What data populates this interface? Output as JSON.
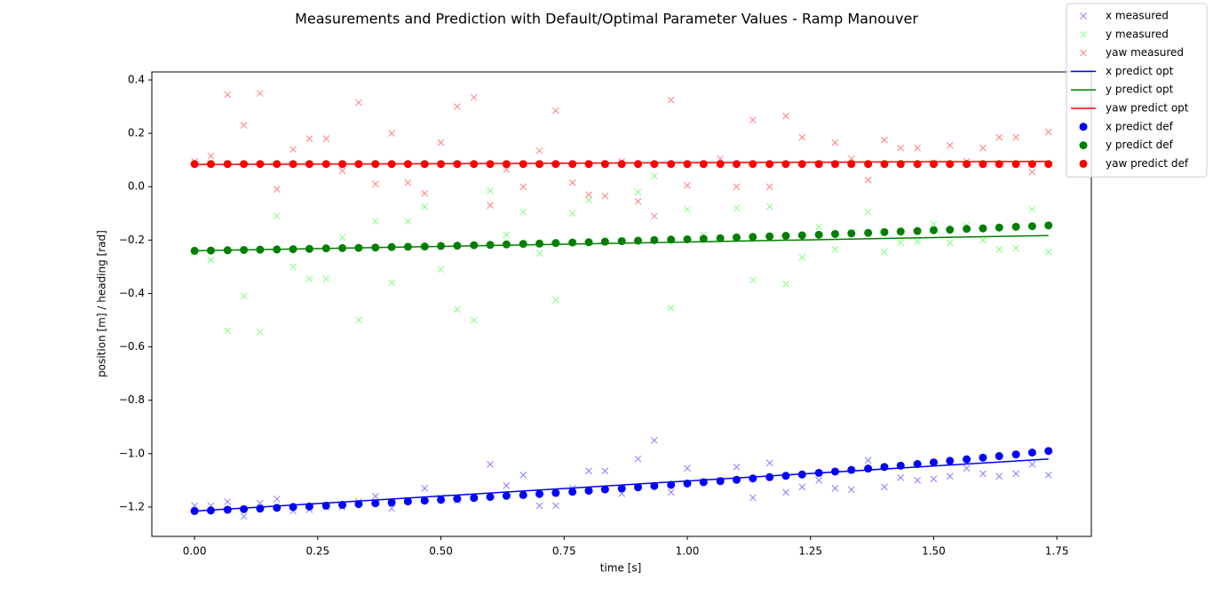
{
  "chart_data": {
    "type": "scatter-line",
    "title": "Measurements and Prediction with Default/Optimal Parameter Values - Ramp Manouver",
    "xlabel": "time [s]",
    "ylabel": "position [m] / heading [rad]",
    "xlim": [
      -0.0867,
      1.82
    ],
    "ylim": [
      -1.31,
      0.43
    ],
    "xticks": [
      {
        "value": 0,
        "label": "0.00"
      },
      {
        "value": 0.25,
        "label": "0.25"
      },
      {
        "value": 0.5,
        "label": "0.50"
      },
      {
        "value": 0.75,
        "label": "0.75"
      },
      {
        "value": 1.0,
        "label": "1.00"
      },
      {
        "value": 1.25,
        "label": "1.25"
      },
      {
        "value": 1.5,
        "label": "1.50"
      },
      {
        "value": 1.75,
        "label": "1.75"
      }
    ],
    "yticks": [
      {
        "value": -1.2,
        "label": "−1.2"
      },
      {
        "value": -1.0,
        "label": "−1.0"
      },
      {
        "value": -0.8,
        "label": "−0.8"
      },
      {
        "value": -0.6,
        "label": "−0.6"
      },
      {
        "value": -0.4,
        "label": "−0.4"
      },
      {
        "value": -0.2,
        "label": "−0.2"
      },
      {
        "value": 0,
        "label": "0.0"
      },
      0.2,
      0.4
    ],
    "legend": "upper right",
    "x": [
      0,
      0.033,
      0.067,
      0.1,
      0.133,
      0.167,
      0.2,
      0.233,
      0.267,
      0.3,
      0.333,
      0.367,
      0.4,
      0.433,
      0.467,
      0.5,
      0.533,
      0.567,
      0.6,
      0.633,
      0.667,
      0.7,
      0.733,
      0.767,
      0.8,
      0.833,
      0.867,
      0.9,
      0.933,
      0.967,
      1.0,
      1.033,
      1.067,
      1.1,
      1.133,
      1.167,
      1.2,
      1.233,
      1.267,
      1.3,
      1.333,
      1.367,
      1.4,
      1.433,
      1.467,
      1.5,
      1.533,
      1.567,
      1.6,
      1.633,
      1.667,
      1.7,
      1.733
    ],
    "series": [
      {
        "name": "x measured",
        "color": "#0000ff",
        "alpha": 0.5,
        "style": "x",
        "values": [
          -1.195,
          -1.195,
          -1.18,
          -1.235,
          -1.185,
          -1.17,
          -1.215,
          -1.21,
          -1.2,
          -1.2,
          -1.18,
          -1.16,
          -1.205,
          -1.175,
          -1.13,
          -1.165,
          -1.175,
          -1.165,
          -1.04,
          -1.12,
          -1.08,
          -1.195,
          -1.195,
          -1.13,
          -1.065,
          -1.065,
          -1.15,
          -1.02,
          -0.95,
          -1.145,
          -1.055,
          -1.105,
          -1.1,
          -1.05,
          -1.165,
          -1.035,
          -1.145,
          -1.125,
          -1.1,
          -1.13,
          -1.135,
          -1.025,
          -1.125,
          -1.09,
          -1.1,
          -1.095,
          -1.085,
          -1.055,
          -1.075,
          -1.085,
          -1.075,
          -1.04,
          -1.08
        ]
      },
      {
        "name": "y measured",
        "color": "#00ff00",
        "alpha": 0.5,
        "style": "x",
        "values": [
          -0.245,
          -0.275,
          -0.54,
          -0.41,
          -0.545,
          -0.11,
          -0.3,
          -0.345,
          -0.345,
          -0.19,
          -0.5,
          -0.13,
          -0.36,
          -0.13,
          -0.075,
          -0.31,
          -0.46,
          -0.5,
          -0.015,
          -0.18,
          -0.095,
          -0.25,
          -0.425,
          -0.1,
          -0.05,
          -0.2,
          -0.2,
          -0.02,
          0.04,
          -0.455,
          -0.085,
          -0.18,
          -0.195,
          -0.08,
          -0.35,
          -0.075,
          -0.365,
          -0.265,
          -0.15,
          -0.235,
          -0.17,
          -0.095,
          -0.245,
          -0.21,
          -0.205,
          -0.14,
          -0.21,
          -0.145,
          -0.2,
          -0.235,
          -0.23,
          -0.085,
          -0.245
        ]
      },
      {
        "name": "yaw measured",
        "color": "#ff0000",
        "alpha": 0.5,
        "style": "x",
        "values": [
          0.095,
          0.115,
          0.345,
          0.23,
          0.35,
          -0.01,
          0.14,
          0.18,
          0.18,
          0.06,
          0.315,
          0.01,
          0.2,
          0.015,
          -0.025,
          0.165,
          0.3,
          0.335,
          -0.07,
          0.065,
          0.0,
          0.135,
          0.285,
          0.015,
          -0.03,
          -0.035,
          0.095,
          -0.055,
          -0.11,
          0.325,
          0.005,
          0.085,
          0.105,
          0.0,
          0.25,
          0.0,
          0.265,
          0.185,
          0.085,
          0.165,
          0.105,
          0.025,
          0.175,
          0.145,
          0.145,
          0.09,
          0.155,
          0.095,
          0.145,
          0.185,
          0.185,
          0.055,
          0.205
        ]
      },
      {
        "name": "x predict opt",
        "color": "#0000ff",
        "style": "line",
        "x": [
          0,
          1.733
        ],
        "values": [
          -1.215,
          -1.02
        ]
      },
      {
        "name": "y predict opt",
        "color": "#008000",
        "style": "line",
        "x": [
          0,
          1.733
        ],
        "values": [
          -0.24,
          -0.183
        ]
      },
      {
        "name": "yaw predict opt",
        "color": "#ff0000",
        "style": "line",
        "x": [
          0,
          1.733
        ],
        "values": [
          0.083,
          0.095
        ]
      },
      {
        "name": "x predict def",
        "color": "#0000ff",
        "style": "o",
        "values": [
          -1.215,
          -1.213,
          -1.21,
          -1.208,
          -1.206,
          -1.203,
          -1.2,
          -1.198,
          -1.195,
          -1.192,
          -1.189,
          -1.186,
          -1.183,
          -1.179,
          -1.176,
          -1.173,
          -1.169,
          -1.166,
          -1.162,
          -1.158,
          -1.155,
          -1.151,
          -1.147,
          -1.143,
          -1.139,
          -1.134,
          -1.13,
          -1.126,
          -1.121,
          -1.117,
          -1.112,
          -1.107,
          -1.103,
          -1.098,
          -1.093,
          -1.088,
          -1.083,
          -1.078,
          -1.072,
          -1.067,
          -1.061,
          -1.056,
          -1.05,
          -1.045,
          -1.039,
          -1.033,
          -1.027,
          -1.021,
          -1.015,
          -1.009,
          -1.003,
          -0.996,
          -0.99
        ]
      },
      {
        "name": "y predict def",
        "color": "#008000",
        "style": "o",
        "values": [
          -0.24,
          -0.239,
          -0.238,
          -0.237,
          -0.236,
          -0.235,
          -0.234,
          -0.233,
          -0.231,
          -0.23,
          -0.229,
          -0.228,
          -0.226,
          -0.225,
          -0.224,
          -0.222,
          -0.221,
          -0.219,
          -0.218,
          -0.216,
          -0.214,
          -0.213,
          -0.211,
          -0.209,
          -0.208,
          -0.206,
          -0.204,
          -0.202,
          -0.2,
          -0.198,
          -0.197,
          -0.195,
          -0.193,
          -0.19,
          -0.188,
          -0.186,
          -0.184,
          -0.182,
          -0.18,
          -0.177,
          -0.175,
          -0.173,
          -0.17,
          -0.168,
          -0.166,
          -0.163,
          -0.161,
          -0.158,
          -0.156,
          -0.153,
          -0.15,
          -0.148,
          -0.145
        ]
      },
      {
        "name": "yaw predict def",
        "color": "#ff0000",
        "style": "o",
        "values": [
          0.085,
          0.085,
          0.085,
          0.085,
          0.085,
          0.085,
          0.085,
          0.085,
          0.085,
          0.085,
          0.085,
          0.085,
          0.085,
          0.085,
          0.085,
          0.085,
          0.085,
          0.085,
          0.085,
          0.085,
          0.085,
          0.085,
          0.085,
          0.085,
          0.085,
          0.085,
          0.085,
          0.085,
          0.085,
          0.085,
          0.085,
          0.085,
          0.085,
          0.085,
          0.085,
          0.085,
          0.085,
          0.085,
          0.085,
          0.085,
          0.085,
          0.085,
          0.085,
          0.085,
          0.085,
          0.085,
          0.085,
          0.085,
          0.085,
          0.085,
          0.085,
          0.085,
          0.085
        ]
      }
    ]
  }
}
